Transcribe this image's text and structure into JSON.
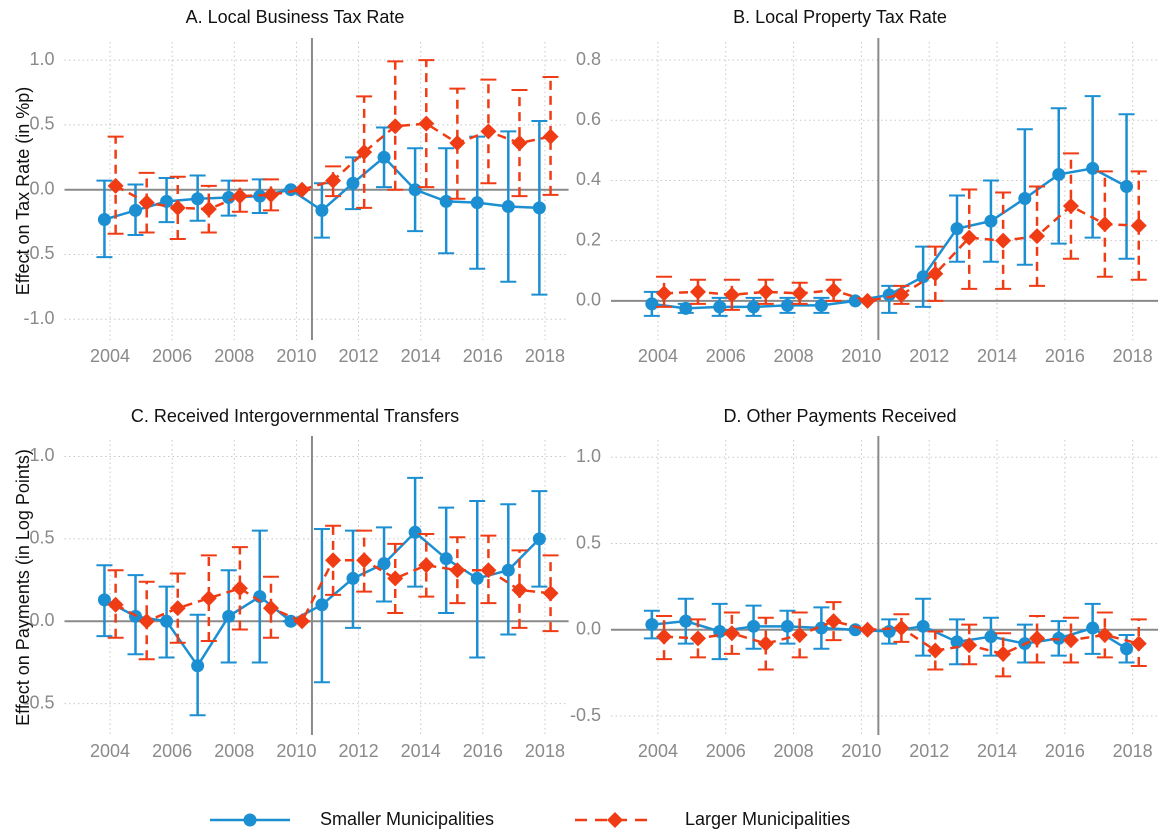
{
  "legend": [
    {
      "name": "Smaller Municipalities",
      "color": "#1b8fd2",
      "marker": "circle",
      "dash": false
    },
    {
      "name": "Larger Municipalities",
      "color": "#f03c15",
      "marker": "diamond",
      "dash": true
    }
  ],
  "chart_data": [
    {
      "type": "line",
      "title": "A. Local Business Tax Rate",
      "ylabel": "Effect on Tax Rate (in %p)",
      "x": [
        2004,
        2005,
        2006,
        2007,
        2008,
        2009,
        2010,
        2011,
        2012,
        2013,
        2014,
        2015,
        2016,
        2017,
        2018
      ],
      "xlim": [
        2003.5,
        2018.6
      ],
      "xticks": [
        2004,
        2006,
        2008,
        2010,
        2012,
        2014,
        2016,
        2018
      ],
      "ylim": [
        -1.16,
        1.14
      ],
      "yticks": [
        {
          "value": -1,
          "label": "-1.0"
        },
        {
          "value": -0.5,
          "label": "-0.5"
        },
        {
          "value": 0,
          "label": "0.0"
        },
        0.5,
        {
          "value": 1,
          "label": "1.0"
        }
      ],
      "vline": 2010.5,
      "grid": true,
      "series": [
        {
          "values": [
            -0.23,
            -0.16,
            -0.09,
            -0.07,
            -0.06,
            -0.05,
            0,
            -0.16,
            0.05,
            0.25,
            0,
            -0.09,
            -0.1,
            -0.13,
            -0.14
          ],
          "ci_low": [
            -0.52,
            -0.35,
            -0.25,
            -0.24,
            -0.2,
            -0.18,
            0,
            -0.37,
            -0.15,
            0.02,
            -0.32,
            -0.49,
            -0.61,
            -0.71,
            -0.81
          ],
          "ci_high": [
            0.07,
            0.04,
            0.09,
            0.11,
            0.07,
            0.08,
            0,
            0.05,
            0.25,
            0.48,
            0.32,
            0.32,
            0.41,
            0.45,
            0.53
          ]
        },
        {
          "values": [
            0.03,
            -0.1,
            -0.14,
            -0.15,
            -0.05,
            -0.04,
            0,
            0.07,
            0.29,
            0.49,
            0.51,
            0.36,
            0.45,
            0.36,
            0.41
          ],
          "ci_low": [
            -0.34,
            -0.33,
            -0.38,
            -0.33,
            -0.17,
            -0.16,
            0,
            -0.05,
            -0.14,
            0,
            0.02,
            -0.07,
            0.05,
            -0.05,
            -0.04
          ],
          "ci_high": [
            0.41,
            0.13,
            0.1,
            0.03,
            0.07,
            0.08,
            0,
            0.18,
            0.72,
            0.99,
            1.0,
            0.78,
            0.85,
            0.77,
            0.87
          ]
        }
      ]
    },
    {
      "type": "line",
      "title": "B. Local Property Tax Rate",
      "x": [
        2004,
        2005,
        2006,
        2007,
        2008,
        2009,
        2010,
        2011,
        2012,
        2013,
        2014,
        2015,
        2016,
        2017,
        2018
      ],
      "xlim": [
        2003.5,
        2018.6
      ],
      "xticks": [
        2004,
        2006,
        2008,
        2010,
        2012,
        2014,
        2016,
        2018
      ],
      "ylim": [
        -0.13,
        0.86
      ],
      "yticks": [
        {
          "value": 0,
          "label": "0.0"
        },
        0.2,
        0.4,
        0.6,
        0.8
      ],
      "vline": 2010.5,
      "grid": true,
      "series": [
        {
          "values": [
            -0.01,
            -0.025,
            -0.02,
            -0.02,
            -0.015,
            -0.015,
            0,
            0.02,
            0.08,
            0.24,
            0.265,
            0.34,
            0.42,
            0.44,
            0.38
          ],
          "ci_low": [
            -0.05,
            -0.04,
            -0.05,
            -0.05,
            -0.04,
            -0.04,
            0,
            -0.04,
            -0.02,
            0.13,
            0.13,
            0.12,
            0.19,
            0.21,
            0.14
          ],
          "ci_high": [
            0.03,
            -0.01,
            0.01,
            0.01,
            0.01,
            0.01,
            0,
            0.05,
            0.18,
            0.35,
            0.4,
            0.57,
            0.64,
            0.68,
            0.62
          ]
        },
        {
          "values": [
            0.025,
            0.03,
            0.02,
            0.03,
            0.025,
            0.035,
            0,
            0.02,
            0.09,
            0.21,
            0.2,
            0.215,
            0.315,
            0.255,
            0.25
          ],
          "ci_low": [
            -0.02,
            -0.01,
            -0.03,
            -0.01,
            -0.01,
            0,
            0,
            -0.01,
            0,
            0.04,
            0.04,
            0.05,
            0.14,
            0.08,
            0.07
          ],
          "ci_high": [
            0.08,
            0.07,
            0.07,
            0.07,
            0.06,
            0.07,
            0,
            0.05,
            0.18,
            0.37,
            0.36,
            0.38,
            0.49,
            0.43,
            0.43
          ]
        }
      ]
    },
    {
      "type": "line",
      "title": "C. Received Intergovernmental Transfers",
      "ylabel": "Effect on Payments (in Log Points)",
      "x": [
        2004,
        2005,
        2006,
        2007,
        2008,
        2009,
        2010,
        2011,
        2012,
        2013,
        2014,
        2015,
        2016,
        2017,
        2018
      ],
      "xlim": [
        2003.5,
        2018.6
      ],
      "xticks": [
        2004,
        2006,
        2008,
        2010,
        2012,
        2014,
        2016,
        2018
      ],
      "ylim": [
        -0.69,
        1.1
      ],
      "yticks": [
        {
          "value": -0.5,
          "label": "-0.5"
        },
        {
          "value": 0,
          "label": "0.0"
        },
        0.5,
        {
          "value": 1,
          "label": "1.0"
        }
      ],
      "vline": 2010.5,
      "grid": true,
      "series": [
        {
          "values": [
            0.13,
            0.03,
            0,
            -0.27,
            0.03,
            0.15,
            0,
            0.1,
            0.26,
            0.35,
            0.54,
            0.38,
            0.26,
            0.31,
            0.5
          ],
          "ci_low": [
            -0.09,
            -0.2,
            -0.22,
            -0.57,
            -0.25,
            -0.25,
            0,
            -0.37,
            -0.04,
            0.12,
            0.21,
            0.05,
            -0.22,
            -0.08,
            0.21
          ],
          "ci_high": [
            0.34,
            0.28,
            0.21,
            0.04,
            0.31,
            0.55,
            0,
            0.56,
            0.55,
            0.57,
            0.87,
            0.69,
            0.73,
            0.71,
            0.79
          ]
        },
        {
          "values": [
            0.1,
            0,
            0.08,
            0.14,
            0.2,
            0.08,
            0,
            0.37,
            0.37,
            0.26,
            0.34,
            0.31,
            0.31,
            0.19,
            0.17
          ],
          "ci_low": [
            -0.1,
            -0.23,
            -0.13,
            -0.12,
            -0.05,
            -0.1,
            0,
            0.16,
            0.18,
            0.05,
            0.15,
            0.11,
            0.11,
            -0.04,
            -0.06
          ],
          "ci_high": [
            0.31,
            0.24,
            0.29,
            0.4,
            0.45,
            0.27,
            0,
            0.58,
            0.55,
            0.47,
            0.53,
            0.51,
            0.52,
            0.43,
            0.4
          ]
        }
      ]
    },
    {
      "type": "line",
      "title": "D. Other Payments Received",
      "x": [
        2004,
        2005,
        2006,
        2007,
        2008,
        2009,
        2010,
        2011,
        2012,
        2013,
        2014,
        2015,
        2016,
        2017,
        2018
      ],
      "xlim": [
        2003.5,
        2018.6
      ],
      "xticks": [
        2004,
        2006,
        2008,
        2010,
        2012,
        2014,
        2016,
        2018
      ],
      "ylim": [
        -0.61,
        1.1
      ],
      "yticks": [
        {
          "value": -0.5,
          "label": "-0.5"
        },
        {
          "value": 0,
          "label": "0.0"
        },
        0.5,
        {
          "value": 1,
          "label": "1.0"
        }
      ],
      "vline": 2010.5,
      "grid": true,
      "series": [
        {
          "values": [
            0.03,
            0.05,
            -0.01,
            0.02,
            0.02,
            0.01,
            0,
            -0.01,
            0.02,
            -0.07,
            -0.04,
            -0.08,
            -0.05,
            0.01,
            -0.11
          ],
          "ci_low": [
            -0.05,
            -0.08,
            -0.17,
            -0.11,
            -0.08,
            -0.11,
            0,
            -0.08,
            -0.15,
            -0.2,
            -0.15,
            -0.19,
            -0.15,
            -0.14,
            -0.19
          ],
          "ci_high": [
            0.11,
            0.18,
            0.15,
            0.14,
            0.11,
            0.13,
            0,
            0.06,
            0.18,
            0.06,
            0.07,
            0.03,
            0.05,
            0.15,
            -0.03
          ]
        },
        {
          "values": [
            -0.04,
            -0.05,
            -0.02,
            -0.08,
            -0.03,
            0.05,
            0,
            0.01,
            -0.12,
            -0.09,
            -0.14,
            -0.05,
            -0.06,
            -0.03,
            -0.08
          ],
          "ci_low": [
            -0.17,
            -0.16,
            -0.14,
            -0.23,
            -0.16,
            -0.06,
            0,
            -0.07,
            -0.23,
            -0.2,
            -0.27,
            -0.19,
            -0.19,
            -0.16,
            -0.21
          ],
          "ci_high": [
            0.08,
            0.06,
            0.1,
            0.07,
            0.1,
            0.16,
            0,
            0.09,
            -0.01,
            0.03,
            -0.02,
            0.08,
            0.07,
            0.1,
            0.06
          ]
        }
      ]
    }
  ]
}
